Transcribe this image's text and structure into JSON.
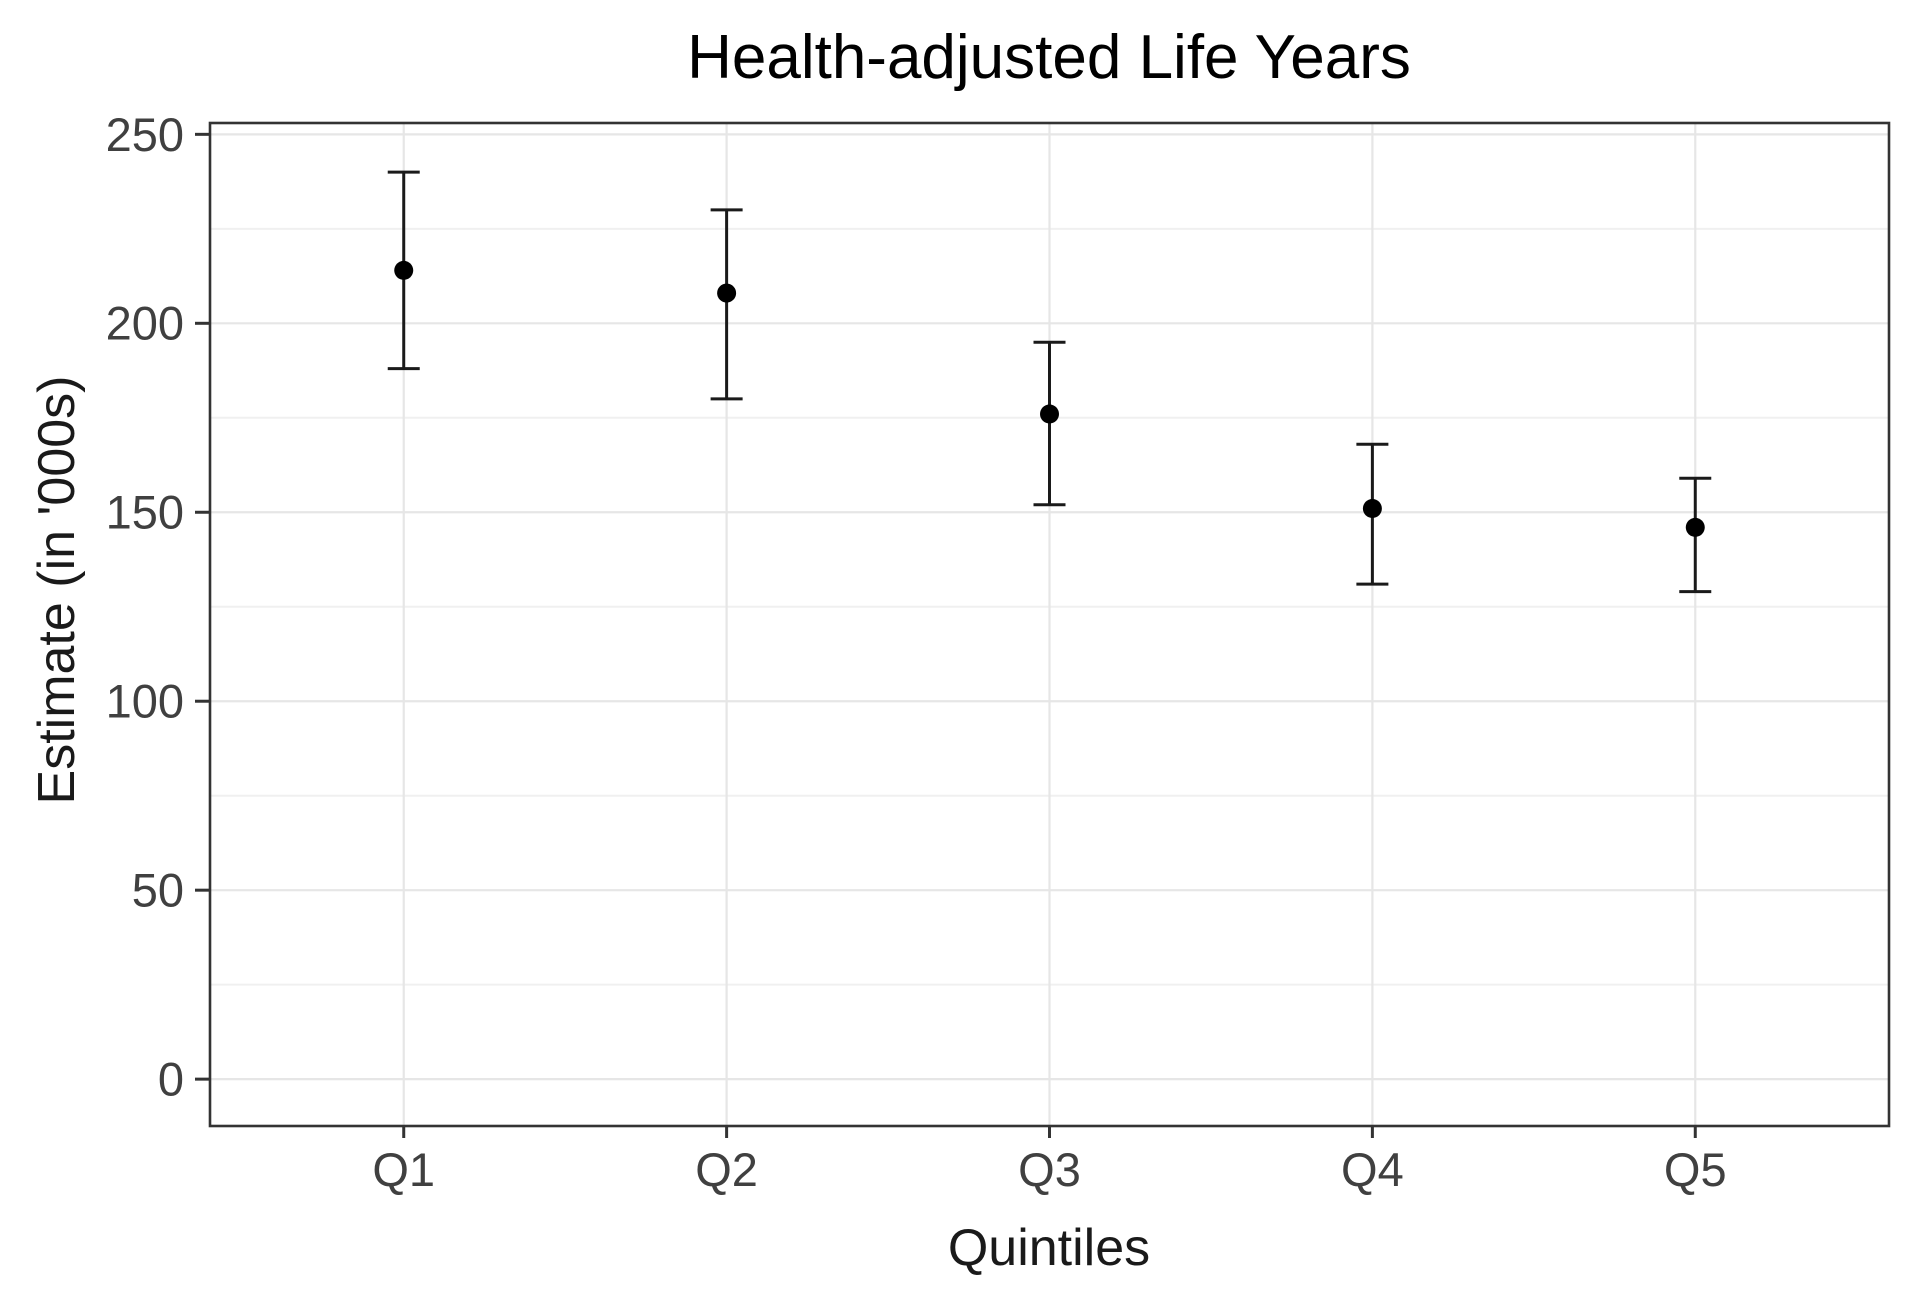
{
  "chart_data": {
    "type": "scatter",
    "subtype": "pointrange",
    "title": "Health-adjusted Life Years",
    "xlabel": "Quintiles",
    "ylabel": "Estimate (in '000s)",
    "categories": [
      "Q1",
      "Q2",
      "Q3",
      "Q4",
      "Q5"
    ],
    "series": [
      {
        "name": "Estimate",
        "values": [
          214,
          208,
          176,
          151,
          146
        ],
        "ci_low": [
          188,
          180,
          152,
          131,
          129
        ],
        "ci_high": [
          240,
          230,
          195,
          168,
          159
        ]
      }
    ],
    "y_ticks": [
      0,
      50,
      100,
      150,
      200,
      250
    ],
    "y_minor_ticks": [
      25,
      75,
      125,
      175,
      225
    ],
    "ylim": [
      -12.4,
      253
    ],
    "grid": "major-and-minor-horizontal, major-vertical-at-categories",
    "legend": "none",
    "colors": {
      "point": "#000000",
      "errorbar": "#1a1a1a",
      "grid_major": "#e6e6e6",
      "grid_minor": "#f0f0f0",
      "panel_border": "#333333",
      "tick": "#333333",
      "background": "#ffffff"
    }
  }
}
